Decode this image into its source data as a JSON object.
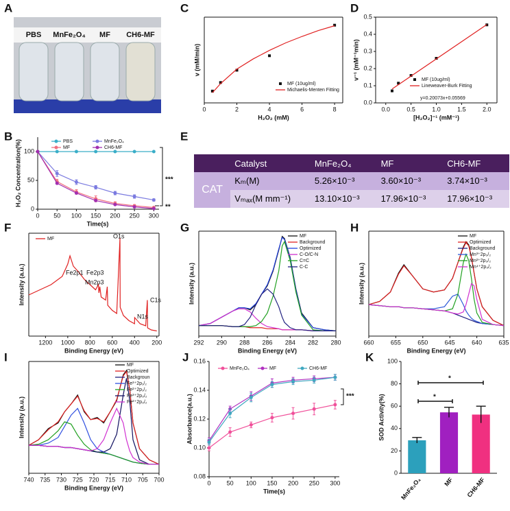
{
  "panel_labels": [
    "A",
    "B",
    "C",
    "D",
    "E",
    "F",
    "G",
    "H",
    "I",
    "J",
    "K"
  ],
  "photo": {
    "labels": [
      "PBS",
      "MnFe₂O₄",
      "MF",
      "CH6-MF"
    ]
  },
  "table": {
    "header": [
      "Catalyst",
      "MnFe₂O₄",
      "MF",
      "CH6-MF"
    ],
    "row_group": "CAT",
    "rows": [
      [
        "Kₘ(M)",
        "5.26×10⁻³",
        "3.60×10⁻³",
        "3.74×10⁻³"
      ],
      [
        "Vₘₐₓ(M mm⁻¹)",
        "13.10×10⁻³",
        "17.96×10⁻³",
        "17.96×10⁻³"
      ]
    ]
  },
  "chart_data": [
    {
      "type": "line",
      "x_label": "Time(s)",
      "y_label": "H₂O₂ Concentration(%)",
      "x": [
        0,
        50,
        100,
        150,
        200,
        250,
        300
      ],
      "xlim": [
        0,
        310
      ],
      "ylim": [
        0,
        125
      ],
      "xticks": [
        0,
        50,
        100,
        150,
        200,
        250,
        300
      ],
      "yticks": [
        0,
        50,
        100
      ],
      "series": [
        {
          "name": "PBS",
          "color": "#3aaec8",
          "marker": "circle",
          "values": [
            100,
            100,
            100,
            100,
            100,
            100,
            100
          ]
        },
        {
          "name": "MnFe₂O₄",
          "color": "#7b7be0",
          "marker": "circle",
          "values": [
            100,
            62,
            47,
            38,
            28,
            22,
            16
          ],
          "errors": [
            0,
            5,
            4,
            3,
            3,
            3,
            2
          ]
        },
        {
          "name": "MF",
          "color": "#f06f7f",
          "marker": "circle",
          "values": [
            100,
            48,
            30,
            18,
            10,
            6,
            3
          ],
          "errors": [
            0,
            4,
            4,
            5,
            3,
            2,
            1
          ]
        },
        {
          "name": "CH6-MF",
          "color": "#a22fb0",
          "marker": "circle",
          "values": [
            100,
            45,
            28,
            15,
            8,
            4,
            1
          ]
        }
      ],
      "annotations": [
        "***",
        "**"
      ]
    },
    {
      "type": "line",
      "x_label": "H₂O₂ (mM)",
      "y_label": "v (mM/min)",
      "xlim": [
        0,
        8.5
      ],
      "ylim": [
        0,
        16
      ],
      "xticks": [
        0,
        2,
        4,
        6,
        8
      ],
      "series": [
        {
          "name": "MF (10ug/ml)",
          "color": "#111111",
          "marker": "square",
          "line": false,
          "x": [
            0.5,
            1,
            2,
            4,
            8
          ],
          "values": [
            2.2,
            3.8,
            6.1,
            8.8,
            14.5
          ]
        },
        {
          "name": "Michaelis-Menten Fitting",
          "color": "#e02020",
          "x": [
            0.5,
            1,
            2,
            3,
            4,
            5,
            6,
            7,
            8
          ],
          "values": [
            1.9,
            3.6,
            6.3,
            8.2,
            9.8,
            11.2,
            12.4,
            13.5,
            14.4
          ]
        }
      ]
    },
    {
      "type": "line",
      "x_label": "[H₂O₂]⁻¹ (mM⁻¹)",
      "y_label": "v⁻¹ (mM⁻¹min)",
      "xlim": [
        -0.2,
        2.2
      ],
      "ylim": [
        0,
        0.5
      ],
      "xticks": [
        {
          "value": 0,
          "label": "0.0"
        },
        0.5,
        {
          "value": 1,
          "label": "1.0"
        },
        1.5,
        {
          "value": 2,
          "label": "2.0"
        }
      ],
      "yticks": [
        {
          "value": 0,
          "label": "0.0"
        },
        0.1,
        0.2,
        0.3,
        0.4,
        0.5
      ],
      "series": [
        {
          "name": "MF (10ug/ml)",
          "color": "#111111",
          "marker": "square",
          "line": false,
          "x": [
            0.125,
            0.25,
            0.5,
            1,
            2
          ],
          "values": [
            0.07,
            0.115,
            0.16,
            0.26,
            0.455
          ]
        },
        {
          "name": "Lineweaver-Burk Fitting",
          "color": "#e02020",
          "x": [
            0.125,
            2
          ],
          "values": [
            0.081,
            0.457
          ]
        }
      ],
      "annotations": [
        "y=0.20073x+0.05569"
      ]
    },
    {
      "type": "line",
      "x_label": "Binding Energy (eV)",
      "y_label": "Intensity (a.u.)",
      "xlim": [
        1350,
        180
      ],
      "ylim": [
        0,
        100
      ],
      "xticks": [
        1200,
        1000,
        800,
        600,
        400,
        200
      ],
      "x": [
        1350,
        1250,
        1150,
        1050,
        1000,
        980,
        950,
        900,
        850,
        800,
        750,
        725,
        720,
        712,
        700,
        660,
        645,
        641,
        600,
        560,
        531,
        529,
        500,
        450,
        400,
        399,
        350,
        300,
        285,
        283,
        250,
        200
      ],
      "series": [
        {
          "name": "MF",
          "color": "#e02020",
          "values": [
            40,
            45,
            50,
            58,
            70,
            78,
            68,
            62,
            55,
            50,
            45,
            50,
            42,
            48,
            38,
            35,
            48,
            30,
            25,
            22,
            95,
            28,
            20,
            15,
            12,
            18,
            12,
            10,
            35,
            8,
            6,
            5
          ]
        }
      ],
      "annotations": [
        "O1s",
        "Fe2p1",
        "Fe2p3",
        "Mn2p3",
        "N1s",
        "C1s"
      ]
    },
    {
      "type": "line",
      "x_label": "Binding Energy (eV)",
      "y_label": "Intensity (a.u.)",
      "xlim": [
        292,
        280
      ],
      "ylim": [
        0,
        100
      ],
      "xticks": [
        292,
        290,
        288,
        286,
        284,
        282,
        280
      ],
      "x": [
        292,
        291,
        290,
        289,
        288.5,
        288,
        287.5,
        287,
        286.5,
        286,
        285.5,
        285,
        284.7,
        284.5,
        284,
        283.5,
        283,
        282,
        281,
        280
      ],
      "series": [
        {
          "name": "MF",
          "color": "#111111",
          "values": [
            10,
            12,
            18,
            24,
            27,
            27,
            25,
            30,
            40,
            48,
            62,
            82,
            95,
            93,
            75,
            45,
            22,
            8,
            6,
            5
          ]
        },
        {
          "name": "Background",
          "color": "#e02020",
          "values": [
            10,
            10,
            10,
            9,
            9,
            9,
            8,
            8,
            8,
            7,
            7,
            7,
            6,
            6,
            6,
            6,
            6,
            5,
            5,
            5
          ]
        },
        {
          "name": "Optimized",
          "color": "#2040e0",
          "values": [
            10,
            12,
            18,
            24,
            27,
            27,
            26,
            31,
            40,
            49,
            63,
            83,
            94,
            92,
            74,
            44,
            21,
            8,
            6,
            5
          ]
        },
        {
          "name": "C-O/C-N",
          "color": "#d030d0",
          "values": [
            10,
            12,
            18,
            24,
            26,
            26,
            23,
            17,
            12,
            9,
            8,
            7,
            6,
            6,
            6,
            6,
            6,
            5,
            5,
            5
          ]
        },
        {
          "name": "C=C",
          "color": "#20a020",
          "values": [
            10,
            10,
            10,
            9,
            9,
            9,
            9,
            10,
            14,
            22,
            38,
            62,
            86,
            90,
            72,
            42,
            20,
            6,
            5,
            5
          ]
        },
        {
          "name": "C-C",
          "color": "#202080",
          "values": [
            10,
            10,
            10,
            9,
            9,
            11,
            18,
            30,
            40,
            45,
            40,
            28,
            18,
            13,
            8,
            6,
            6,
            5,
            5,
            5
          ]
        }
      ]
    },
    {
      "type": "line",
      "x_label": "Binding Energy (eV)",
      "y_label": "Intensity (a.u.)",
      "xlim": [
        660,
        635
      ],
      "ylim": [
        0,
        100
      ],
      "xticks": [
        660,
        655,
        650,
        645,
        640,
        635
      ],
      "x": [
        660,
        658,
        656,
        654.5,
        653.5,
        652,
        650,
        648,
        646,
        644.5,
        643.5,
        642.5,
        642,
        641.5,
        641,
        640.5,
        640,
        639,
        637,
        635
      ],
      "series": [
        {
          "name": "MF",
          "color": "#111111",
          "values": [
            30,
            33,
            42,
            60,
            68,
            58,
            45,
            42,
            44,
            55,
            70,
            85,
            90,
            87,
            75,
            60,
            45,
            28,
            15,
            10
          ]
        },
        {
          "name": "Optimized",
          "color": "#e02020",
          "values": [
            30,
            33,
            42,
            59,
            67,
            58,
            45,
            42,
            44,
            55,
            70,
            84,
            89,
            86,
            75,
            60,
            45,
            28,
            15,
            10
          ]
        },
        {
          "name": "Background",
          "color": "#202080",
          "values": [
            30,
            29,
            28,
            28,
            27,
            27,
            26,
            25,
            24,
            22,
            20,
            18,
            17,
            16,
            15,
            14,
            13,
            12,
            11,
            10
          ]
        },
        {
          "name": "Mn³⁺2p₃/₂",
          "color": "#2e5ad8",
          "values": [
            30,
            29,
            28,
            28,
            27,
            27,
            26,
            26,
            28,
            38,
            40,
            30,
            24,
            20,
            17,
            15,
            14,
            12,
            11,
            10
          ]
        },
        {
          "name": "Mn²⁺2p₃/₂",
          "color": "#20a020",
          "values": [
            30,
            29,
            28,
            28,
            27,
            27,
            26,
            25,
            24,
            26,
            40,
            70,
            78,
            72,
            55,
            35,
            22,
            13,
            11,
            10
          ]
        },
        {
          "name": "Mn⁴⁺2p₃/₂",
          "color": "#d030d0",
          "values": [
            30,
            29,
            28,
            28,
            27,
            27,
            26,
            25,
            24,
            22,
            21,
            23,
            30,
            40,
            50,
            48,
            35,
            16,
            11,
            10
          ]
        }
      ]
    },
    {
      "type": "line",
      "x_label": "Binding Energy (eV)",
      "y_label": "Intensity (a.u.)",
      "xlim": [
        740,
        700
      ],
      "ylim": [
        0,
        100
      ],
      "xticks": [
        740,
        735,
        730,
        725,
        720,
        715,
        710,
        705,
        700
      ],
      "x": [
        740,
        737,
        734,
        731,
        729,
        727,
        725,
        723,
        721,
        719,
        717,
        715,
        713,
        711,
        710,
        709,
        708,
        706,
        703,
        700
      ],
      "series": [
        {
          "name": "MF",
          "color": "#111111",
          "values": [
            25,
            30,
            40,
            45,
            55,
            62,
            70,
            55,
            48,
            50,
            45,
            55,
            65,
            88,
            92,
            75,
            45,
            22,
            12,
            8
          ]
        },
        {
          "name": "Optimized",
          "color": "#e02020",
          "values": [
            25,
            30,
            39,
            46,
            55,
            62,
            69,
            56,
            48,
            49,
            46,
            55,
            66,
            87,
            91,
            75,
            45,
            22,
            12,
            8
          ]
        },
        {
          "name": "Backgroun",
          "color": "#202080",
          "values": [
            25,
            25,
            24,
            24,
            23,
            23,
            22,
            21,
            20,
            19,
            18,
            17,
            15,
            13,
            12,
            11,
            10,
            9,
            8,
            8
          ]
        },
        {
          "name": "Fe³⁺2p₁/₂",
          "color": "#3050e0",
          "values": [
            25,
            25,
            27,
            32,
            42,
            52,
            58,
            45,
            30,
            22,
            19,
            17,
            15,
            13,
            12,
            11,
            10,
            9,
            8,
            8
          ]
        },
        {
          "name": "Fe²⁺2p₁/₂",
          "color": "#20a020",
          "values": [
            25,
            26,
            30,
            38,
            46,
            44,
            34,
            26,
            21,
            19,
            18,
            17,
            15,
            13,
            12,
            11,
            10,
            9,
            8,
            8
          ]
        },
        {
          "name": "Fe³⁺2p₃/₂",
          "color": "#101060",
          "values": [
            25,
            25,
            24,
            24,
            23,
            23,
            22,
            21,
            20,
            19,
            19,
            22,
            35,
            70,
            85,
            65,
            30,
            12,
            8,
            8
          ]
        },
        {
          "name": "Fe²⁺2p₃/₂",
          "color": "#d030d0",
          "values": [
            25,
            25,
            24,
            24,
            23,
            23,
            22,
            21,
            20,
            22,
            30,
            45,
            58,
            45,
            30,
            20,
            14,
            10,
            8,
            8
          ]
        }
      ]
    },
    {
      "type": "line",
      "x_label": "Time(s)",
      "y_label": "Absorbance(a.u.)",
      "x": [
        0,
        50,
        100,
        150,
        200,
        250,
        300
      ],
      "xlim": [
        0,
        310
      ],
      "ylim": [
        0.08,
        0.16
      ],
      "xticks": [
        0,
        50,
        100,
        150,
        200,
        250,
        300
      ],
      "yticks": [
        0.08,
        {
          "value": 0.1,
          "label": "0.10"
        },
        0.12,
        0.14,
        0.16
      ],
      "series": [
        {
          "name": "MnFe₂O₄",
          "color": "#f0509a",
          "marker": "circle",
          "values": [
            0.1,
            0.111,
            0.116,
            0.121,
            0.124,
            0.127,
            0.13
          ],
          "errors": [
            0.002,
            0.003,
            0.002,
            0.003,
            0.004,
            0.004,
            0.003
          ]
        },
        {
          "name": "MF",
          "color": "#b030c0",
          "marker": "circle",
          "values": [
            0.105,
            0.127,
            0.136,
            0.145,
            0.147,
            0.148,
            0.149
          ],
          "errors": [
            0.002,
            0.002,
            0.003,
            0.003,
            0.002,
            0.002,
            0.002
          ]
        },
        {
          "name": "CH6-MF",
          "color": "#40a8c0",
          "marker": "circle",
          "values": [
            0.104,
            0.124,
            0.135,
            0.144,
            0.146,
            0.147,
            0.149
          ],
          "errors": [
            0.002,
            0.003,
            0.003,
            0.002,
            0.002,
            0.002,
            0.002
          ]
        }
      ],
      "annotations": [
        "***"
      ]
    },
    {
      "type": "bar",
      "y_label": "SOD Activity(%)",
      "categories": [
        "MnFe₂O₄",
        "MF",
        "CH6-MF"
      ],
      "values": [
        29.5,
        54.5,
        52.5
      ],
      "errors": [
        2.5,
        4.5,
        7.5
      ],
      "colors": [
        "#2ca0bc",
        "#a020c0",
        "#f03080"
      ],
      "ylim": [
        0,
        100
      ],
      "yticks": [
        0,
        20,
        40,
        60,
        80,
        100
      ],
      "annotations": [
        "*",
        "*"
      ]
    }
  ]
}
